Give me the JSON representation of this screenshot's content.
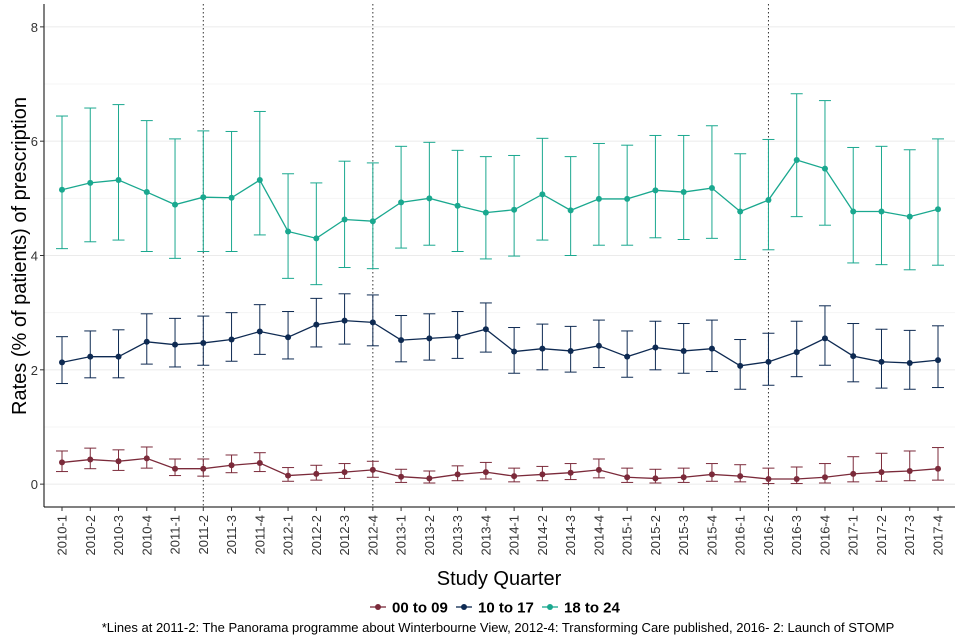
{
  "chart_data": {
    "type": "line",
    "title": "",
    "xlabel": "Study Quarter",
    "ylabel": "Rates (% of patients) of prescription",
    "ylim": [
      -0.4,
      8.4
    ],
    "yticks": [
      0,
      2,
      4,
      6,
      8
    ],
    "grid": true,
    "legend_position": "bottom",
    "categories": [
      "2010-1",
      "2010-2",
      "2010-3",
      "2010-4",
      "2011-1",
      "2011-2",
      "2011-3",
      "2011-4",
      "2012-1",
      "2012-2",
      "2012-3",
      "2012-4",
      "2013-1",
      "2013-2",
      "2013-3",
      "2013-4",
      "2014-1",
      "2014-2",
      "2014-3",
      "2014-4",
      "2015-1",
      "2015-2",
      "2015-3",
      "2015-4",
      "2016-1",
      "2016-2",
      "2016-3",
      "2016-4",
      "2017-1",
      "2017-2",
      "2017-3",
      "2017-4"
    ],
    "vlines": [
      "2011-2",
      "2012-4",
      "2016-2"
    ],
    "series": [
      {
        "name": "00 to 09",
        "color": "#7b2a3a",
        "values": [
          0.38,
          0.43,
          0.4,
          0.45,
          0.27,
          0.27,
          0.33,
          0.37,
          0.15,
          0.18,
          0.21,
          0.25,
          0.13,
          0.1,
          0.17,
          0.21,
          0.14,
          0.17,
          0.2,
          0.25,
          0.12,
          0.1,
          0.12,
          0.17,
          0.14,
          0.09,
          0.09,
          0.12,
          0.18,
          0.21,
          0.23,
          0.27
        ],
        "lower": [
          0.22,
          0.27,
          0.24,
          0.28,
          0.15,
          0.14,
          0.2,
          0.22,
          0.05,
          0.07,
          0.1,
          0.12,
          0.03,
          0.02,
          0.06,
          0.09,
          0.04,
          0.06,
          0.08,
          0.11,
          0.03,
          0.02,
          0.03,
          0.05,
          0.04,
          0.01,
          0.01,
          0.02,
          0.04,
          0.05,
          0.06,
          0.07
        ],
        "upper": [
          0.58,
          0.63,
          0.6,
          0.65,
          0.44,
          0.44,
          0.51,
          0.55,
          0.29,
          0.33,
          0.36,
          0.4,
          0.26,
          0.23,
          0.32,
          0.38,
          0.28,
          0.31,
          0.36,
          0.44,
          0.28,
          0.26,
          0.28,
          0.36,
          0.34,
          0.28,
          0.3,
          0.36,
          0.48,
          0.54,
          0.58,
          0.64
        ]
      },
      {
        "name": "10 to 17",
        "color": "#0e2a52",
        "values": [
          2.13,
          2.23,
          2.23,
          2.49,
          2.44,
          2.47,
          2.53,
          2.67,
          2.57,
          2.79,
          2.86,
          2.83,
          2.52,
          2.55,
          2.58,
          2.71,
          2.32,
          2.37,
          2.33,
          2.42,
          2.23,
          2.39,
          2.33,
          2.37,
          2.07,
          2.14,
          2.31,
          2.55,
          2.24,
          2.14,
          2.12,
          2.17
        ],
        "lower": [
          1.76,
          1.86,
          1.86,
          2.1,
          2.05,
          2.08,
          2.15,
          2.27,
          2.19,
          2.4,
          2.45,
          2.42,
          2.14,
          2.17,
          2.2,
          2.31,
          1.94,
          2.0,
          1.96,
          2.04,
          1.87,
          2.0,
          1.94,
          1.97,
          1.66,
          1.73,
          1.88,
          2.08,
          1.79,
          1.68,
          1.66,
          1.69
        ],
        "upper": [
          2.58,
          2.68,
          2.7,
          2.98,
          2.9,
          2.94,
          3.0,
          3.14,
          3.02,
          3.25,
          3.33,
          3.31,
          2.95,
          2.98,
          3.02,
          3.17,
          2.74,
          2.8,
          2.76,
          2.87,
          2.68,
          2.85,
          2.81,
          2.87,
          2.53,
          2.64,
          2.85,
          3.12,
          2.81,
          2.71,
          2.69,
          2.77
        ]
      },
      {
        "name": "18 to 24",
        "color": "#1aa88f",
        "values": [
          5.15,
          5.27,
          5.32,
          5.11,
          4.89,
          5.02,
          5.01,
          5.32,
          4.42,
          4.3,
          4.63,
          4.6,
          4.93,
          5.0,
          4.87,
          4.75,
          4.8,
          5.07,
          4.79,
          4.99,
          4.99,
          5.14,
          5.11,
          5.18,
          4.77,
          4.97,
          5.67,
          5.52,
          4.77,
          4.77,
          4.68,
          4.81
        ],
        "lower": [
          4.12,
          4.24,
          4.27,
          4.07,
          3.95,
          4.07,
          4.07,
          4.36,
          3.6,
          3.49,
          3.79,
          3.77,
          4.13,
          4.18,
          4.07,
          3.94,
          3.99,
          4.27,
          4.0,
          4.18,
          4.18,
          4.31,
          4.28,
          4.3,
          3.93,
          4.1,
          4.68,
          4.53,
          3.87,
          3.84,
          3.75,
          3.83
        ],
        "upper": [
          6.44,
          6.58,
          6.64,
          6.36,
          6.04,
          6.18,
          6.17,
          6.52,
          5.43,
          5.27,
          5.65,
          5.62,
          5.91,
          5.98,
          5.84,
          5.73,
          5.75,
          6.05,
          5.73,
          5.96,
          5.93,
          6.1,
          6.1,
          6.27,
          5.78,
          6.03,
          6.83,
          6.71,
          5.89,
          5.91,
          5.85,
          6.04
        ]
      }
    ],
    "caption": "*Lines at 2011-2: The Panorama programme about Winterbourne View, 2012-4: Transforming Care published, 2016- 2: Launch of STOMP"
  }
}
